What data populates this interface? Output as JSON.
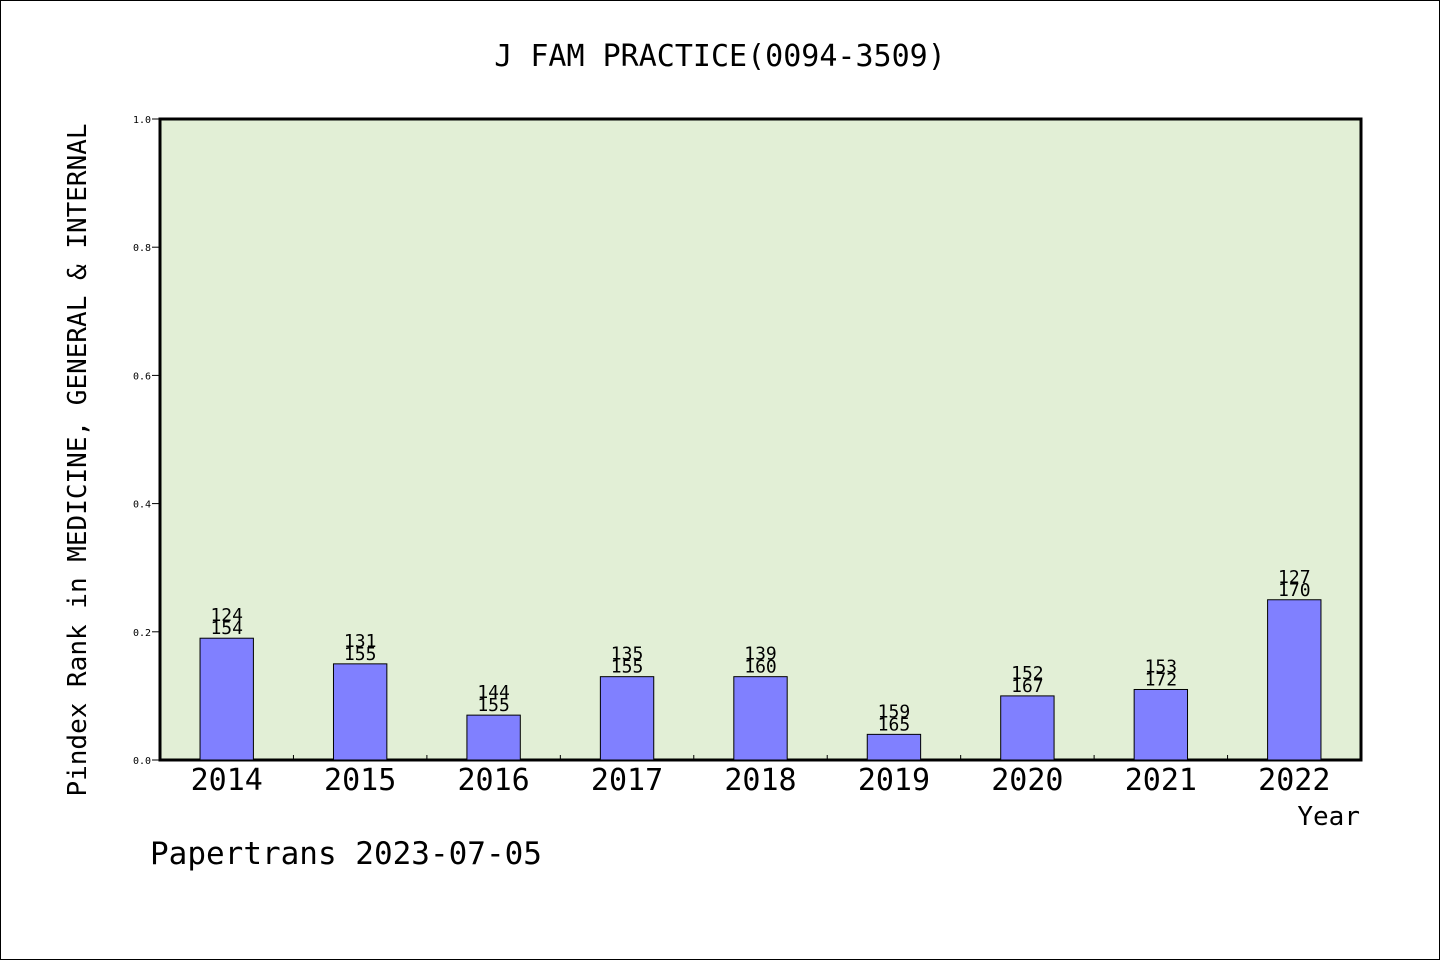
{
  "chart_data": {
    "type": "bar",
    "title": "J FAM PRACTICE(0094-3509)",
    "xlabel": "Year",
    "ylabel": "Pindex Rank in MEDICINE, GENERAL & INTERNAL",
    "categories": [
      "2014",
      "2015",
      "2016",
      "2017",
      "2018",
      "2019",
      "2020",
      "2021",
      "2022"
    ],
    "values": [
      0.19,
      0.15,
      0.07,
      0.13,
      0.13,
      0.04,
      0.1,
      0.11,
      0.25
    ],
    "label_top": [
      "124",
      "131",
      "144",
      "135",
      "139",
      "159",
      "152",
      "153",
      "127"
    ],
    "label_bottom": [
      "154",
      "155",
      "155",
      "155",
      "160",
      "165",
      "167",
      "172",
      "170"
    ],
    "ylim": [
      0,
      1.0
    ],
    "yticks": [
      "0.0",
      "0.2",
      "0.4",
      "0.6",
      "0.8",
      "1.0"
    ],
    "grid": false,
    "colors": {
      "plot_background": "#e2efd6",
      "bar_fill": "#8080ff",
      "bar_stroke": "#000000"
    }
  },
  "footer": {
    "watermark": "Papertrans 2023-07-05"
  }
}
